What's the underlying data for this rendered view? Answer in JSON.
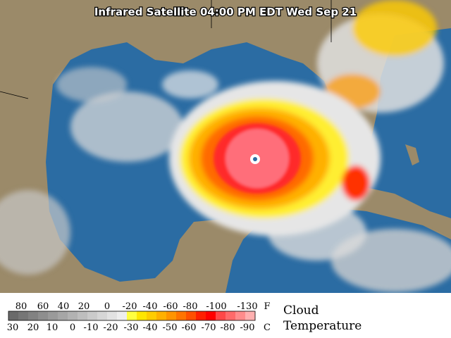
{
  "title": "Infrared Satellite 04:00 PM EDT Wed Sep 21",
  "legend": {
    "fahrenheit_labels": [
      80,
      60,
      40,
      20,
      0,
      -20,
      -40,
      -60,
      -80,
      -100,
      -130
    ],
    "fahrenheit_unit": "F",
    "celsius_labels": [
      30,
      20,
      10,
      0,
      -10,
      -20,
      -30,
      -40,
      -50,
      -60,
      -70,
      -80,
      -90
    ],
    "celsius_unit": "C",
    "caption_line1": "Cloud",
    "caption_line2": "Temperature",
    "colors": [
      "#6a6a6a",
      "#767676",
      "#828282",
      "#8e8e8e",
      "#9a9a9a",
      "#a6a6a6",
      "#b2b2b2",
      "#bebebe",
      "#cacaca",
      "#d6d6d6",
      "#e2e2e2",
      "#eeeeee",
      "#ffff40",
      "#ffe600",
      "#ffcc00",
      "#ffb000",
      "#ff9400",
      "#ff7400",
      "#ff5000",
      "#ff2000",
      "#ff0000",
      "#ff4848",
      "#ff6a6a",
      "#ff8c8c",
      "#ffb0b0"
    ]
  }
}
